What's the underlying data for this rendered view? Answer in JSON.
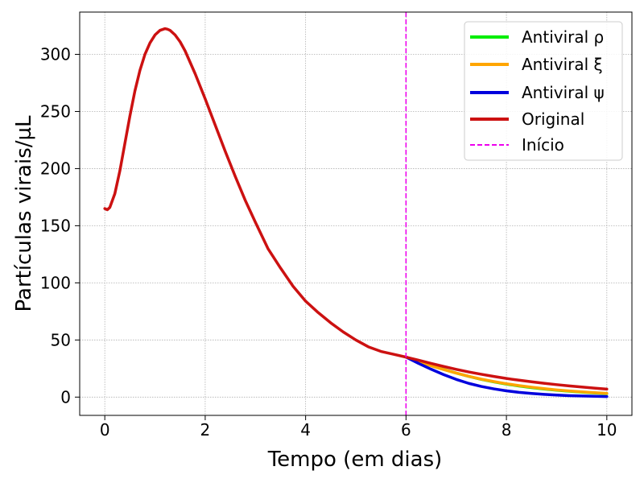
{
  "chart_data": {
    "type": "line",
    "title": "",
    "xlabel": "Tempo (em dias)",
    "ylabel": "Partículas virais/µL",
    "xlim": [
      -0.5,
      10.5
    ],
    "ylim": [
      -16,
      337
    ],
    "xticks": [
      0,
      2,
      4,
      6,
      8,
      10
    ],
    "yticks": [
      0,
      50,
      100,
      150,
      200,
      250,
      300
    ],
    "grid": true,
    "legend_position": "top-right",
    "series": [
      {
        "name": "Antiviral ρ",
        "color": "#00ee00",
        "x": [
          6.0,
          6.25,
          6.5,
          6.75,
          7.0,
          7.25,
          7.5,
          7.75,
          8.0,
          8.25,
          8.5,
          8.75,
          9.0,
          9.25,
          9.5,
          9.75,
          10.0
        ],
        "y": [
          35.0,
          31.3,
          27.7,
          24.2,
          21.0,
          18.1,
          15.5,
          13.3,
          11.4,
          9.7,
          8.3,
          7.1,
          6.0,
          5.1,
          4.3,
          3.6,
          3.0
        ]
      },
      {
        "name": "Antiviral ξ",
        "color": "#ffa500",
        "x": [
          6.0,
          6.25,
          6.5,
          6.75,
          7.0,
          7.25,
          7.5,
          7.75,
          8.0,
          8.25,
          8.5,
          8.75,
          9.0,
          9.25,
          9.5,
          9.75,
          10.0
        ],
        "y": [
          35.0,
          31.0,
          27.4,
          24.1,
          21.0,
          18.2,
          15.7,
          13.6,
          11.7,
          10.1,
          8.7,
          7.4,
          6.3,
          5.4,
          4.6,
          3.9,
          3.3
        ]
      },
      {
        "name": "Antiviral ψ",
        "color": "#0000dd",
        "x": [
          6.0,
          6.25,
          6.5,
          6.75,
          7.0,
          7.25,
          7.5,
          7.75,
          8.0,
          8.25,
          8.5,
          8.75,
          9.0,
          9.25,
          9.5,
          9.75,
          10.0
        ],
        "y": [
          35.0,
          29.5,
          24.4,
          19.7,
          15.5,
          12.0,
          9.3,
          7.2,
          5.5,
          4.2,
          3.2,
          2.4,
          1.8,
          1.3,
          1.0,
          0.7,
          0.5
        ]
      },
      {
        "name": "Original",
        "color": "#cc1111",
        "x": [
          0.0,
          0.05,
          0.1,
          0.2,
          0.3,
          0.4,
          0.5,
          0.6,
          0.7,
          0.8,
          0.9,
          1.0,
          1.1,
          1.2,
          1.25,
          1.3,
          1.4,
          1.5,
          1.6,
          1.8,
          2.0,
          2.2,
          2.4,
          2.6,
          2.8,
          3.0,
          3.25,
          3.5,
          3.75,
          4.0,
          4.25,
          4.5,
          4.75,
          5.0,
          5.25,
          5.5,
          5.75,
          6.0,
          6.25,
          6.5,
          6.75,
          7.0,
          7.25,
          7.5,
          7.75,
          8.0,
          8.25,
          8.5,
          8.75,
          9.0,
          9.25,
          9.5,
          9.75,
          10.0
        ],
        "y": [
          165,
          164,
          166,
          178,
          198,
          222,
          246,
          268,
          286,
          300,
          310,
          317,
          321,
          322.5,
          322,
          321,
          317,
          311,
          303,
          283,
          261,
          238,
          215,
          193,
          172,
          153,
          130,
          113,
          97,
          84,
          74,
          65,
          57,
          50,
          44,
          40,
          37.5,
          35,
          32.3,
          29.5,
          26.8,
          24.3,
          22.0,
          20.0,
          18.1,
          16.3,
          14.8,
          13.4,
          12.1,
          10.9,
          9.8,
          8.8,
          7.9,
          7.0
        ]
      }
    ],
    "annotations": [
      {
        "type": "vline",
        "x": 6,
        "label": "Início",
        "color": "#ee00ee",
        "style": "dashed"
      }
    ]
  }
}
